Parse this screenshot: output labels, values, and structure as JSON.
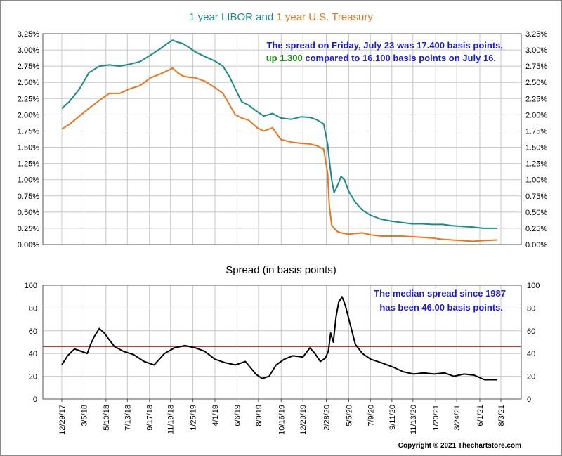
{
  "chart_data": [
    {
      "type": "line",
      "title_parts": [
        {
          "text": "1 year LIBOR",
          "color": "#1b8a8a"
        },
        {
          "text": " and ",
          "color": "#1b8a8a"
        },
        {
          "text": "1 year U.S. Treasury",
          "color": "#e87722"
        }
      ],
      "ylim": [
        0,
        3.25
      ],
      "y_ticks": [
        "0.00%",
        "0.25%",
        "0.50%",
        "0.75%",
        "1.00%",
        "1.25%",
        "1.50%",
        "1.75%",
        "2.00%",
        "2.25%",
        "2.50%",
        "2.75%",
        "3.00%",
        "3.25%"
      ],
      "annotation": {
        "line1": "The spread on Friday, July 23 was 17.400 basis points,",
        "line2_change": "up 1.300",
        "line2_rest": " compared to 16.100 basis points on July 16.",
        "color": "#1a1ad6",
        "change_color": "#1a8a1a"
      },
      "series": [
        {
          "name": "1 year LIBOR",
          "color": "#1b8a8a",
          "x": [
            "2017-12-29",
            "2018-01-20",
            "2018-02-20",
            "2018-03-20",
            "2018-04-20",
            "2018-05-20",
            "2018-06-20",
            "2018-07-20",
            "2018-08-20",
            "2018-09-20",
            "2018-10-20",
            "2018-11-10",
            "2018-11-25",
            "2018-12-10",
            "2018-12-25",
            "2019-01-10",
            "2019-02-01",
            "2019-03-01",
            "2019-04-01",
            "2019-04-25",
            "2019-05-15",
            "2019-06-01",
            "2019-06-20",
            "2019-07-10",
            "2019-08-05",
            "2019-08-25",
            "2019-09-20",
            "2019-10-15",
            "2019-11-15",
            "2019-12-15",
            "2020-01-10",
            "2020-02-01",
            "2020-02-20",
            "2020-03-03",
            "2020-03-08",
            "2020-03-15",
            "2020-03-22",
            "2020-04-01",
            "2020-04-12",
            "2020-04-22",
            "2020-05-05",
            "2020-05-25",
            "2020-06-15",
            "2020-07-10",
            "2020-08-10",
            "2020-09-10",
            "2020-10-10",
            "2020-11-10",
            "2020-12-10",
            "2021-01-10",
            "2021-02-10",
            "2021-03-10",
            "2021-04-10",
            "2021-05-10",
            "2021-06-10",
            "2021-07-23"
          ],
          "values": [
            2.1,
            2.2,
            2.4,
            2.65,
            2.75,
            2.77,
            2.75,
            2.78,
            2.82,
            2.92,
            3.02,
            3.1,
            3.15,
            3.12,
            3.1,
            3.05,
            2.97,
            2.9,
            2.83,
            2.75,
            2.58,
            2.4,
            2.2,
            2.15,
            2.05,
            1.98,
            2.02,
            1.95,
            1.93,
            1.97,
            1.96,
            1.92,
            1.86,
            1.55,
            1.3,
            1.0,
            0.8,
            0.9,
            1.05,
            1.0,
            0.82,
            0.65,
            0.53,
            0.45,
            0.39,
            0.36,
            0.34,
            0.32,
            0.32,
            0.31,
            0.31,
            0.29,
            0.28,
            0.27,
            0.25,
            0.25
          ]
        },
        {
          "name": "1 year U.S. Treasury",
          "color": "#e87722",
          "x": [
            "2017-12-29",
            "2018-01-20",
            "2018-02-20",
            "2018-03-20",
            "2018-04-20",
            "2018-05-20",
            "2018-06-20",
            "2018-07-20",
            "2018-08-20",
            "2018-09-20",
            "2018-10-20",
            "2018-11-10",
            "2018-11-25",
            "2018-12-10",
            "2018-12-25",
            "2019-01-10",
            "2019-02-01",
            "2019-03-01",
            "2019-04-01",
            "2019-04-25",
            "2019-05-15",
            "2019-06-01",
            "2019-06-20",
            "2019-07-10",
            "2019-08-05",
            "2019-08-25",
            "2019-09-20",
            "2019-10-15",
            "2019-11-15",
            "2019-12-15",
            "2020-01-10",
            "2020-02-01",
            "2020-02-20",
            "2020-03-03",
            "2020-03-08",
            "2020-03-15",
            "2020-03-22",
            "2020-04-01",
            "2020-04-12",
            "2020-04-22",
            "2020-05-05",
            "2020-05-25",
            "2020-06-15",
            "2020-07-10",
            "2020-08-10",
            "2020-09-10",
            "2020-10-10",
            "2020-11-10",
            "2020-12-10",
            "2021-01-10",
            "2021-02-10",
            "2021-03-10",
            "2021-04-10",
            "2021-05-10",
            "2021-06-10",
            "2021-07-23"
          ],
          "values": [
            1.78,
            1.85,
            1.98,
            2.1,
            2.22,
            2.33,
            2.33,
            2.4,
            2.45,
            2.57,
            2.63,
            2.68,
            2.72,
            2.65,
            2.6,
            2.58,
            2.57,
            2.52,
            2.42,
            2.33,
            2.15,
            2.0,
            1.95,
            1.92,
            1.8,
            1.75,
            1.8,
            1.62,
            1.58,
            1.56,
            1.55,
            1.52,
            1.47,
            1.1,
            0.6,
            0.3,
            0.25,
            0.2,
            0.18,
            0.17,
            0.16,
            0.17,
            0.18,
            0.15,
            0.13,
            0.13,
            0.13,
            0.12,
            0.11,
            0.1,
            0.08,
            0.07,
            0.06,
            0.05,
            0.06,
            0.07
          ]
        }
      ]
    },
    {
      "type": "line",
      "title": "Spread (in basis points)",
      "ylim": [
        0,
        100
      ],
      "y_ticks": [
        "0",
        "20",
        "40",
        "60",
        "80",
        "100"
      ],
      "median": 46.0,
      "median_color": "#e03030",
      "annotation": {
        "line1": "The median spread since 1987",
        "line2": "has been 46.00 basis points.",
        "color": "#1a1ad6"
      },
      "series": [
        {
          "name": "Spread",
          "color": "#000000",
          "x": [
            "2017-12-29",
            "2018-01-15",
            "2018-02-05",
            "2018-02-25",
            "2018-03-15",
            "2018-03-25",
            "2018-04-05",
            "2018-04-20",
            "2018-05-05",
            "2018-05-20",
            "2018-06-05",
            "2018-07-01",
            "2018-08-01",
            "2018-09-01",
            "2018-10-01",
            "2018-11-01",
            "2018-12-01",
            "2019-01-01",
            "2019-02-01",
            "2019-03-01",
            "2019-04-01",
            "2019-05-01",
            "2019-06-01",
            "2019-07-01",
            "2019-08-01",
            "2019-08-20",
            "2019-09-10",
            "2019-10-01",
            "2019-10-25",
            "2019-11-20",
            "2019-12-20",
            "2020-01-10",
            "2020-01-25",
            "2020-02-10",
            "2020-02-25",
            "2020-03-05",
            "2020-03-12",
            "2020-03-20",
            "2020-03-28",
            "2020-04-05",
            "2020-04-15",
            "2020-04-25",
            "2020-05-10",
            "2020-05-25",
            "2020-06-15",
            "2020-07-10",
            "2020-08-10",
            "2020-09-15",
            "2020-10-15",
            "2020-11-15",
            "2020-12-15",
            "2021-01-15",
            "2021-02-15",
            "2021-03-15",
            "2021-04-15",
            "2021-05-15",
            "2021-06-15",
            "2021-07-23"
          ],
          "values": [
            30,
            38,
            44,
            42,
            40,
            48,
            55,
            62,
            58,
            52,
            46,
            42,
            39,
            33,
            30,
            40,
            45,
            47,
            45,
            42,
            35,
            32,
            30,
            33,
            22,
            18,
            20,
            30,
            35,
            38,
            37,
            45,
            40,
            33,
            36,
            42,
            58,
            50,
            72,
            85,
            90,
            82,
            65,
            48,
            40,
            35,
            32,
            28,
            24,
            22,
            23,
            22,
            23,
            20,
            22,
            21,
            17,
            17
          ]
        }
      ]
    }
  ],
  "x_ticks": [
    "12/29/17",
    "3/5/18",
    "5/10/18",
    "7/13/18",
    "9/17/18",
    "11/19/18",
    "1/25/19",
    "4/1/19",
    "6/6/19",
    "8/9/19",
    "10/16/19",
    "12/20/19",
    "2/28/20",
    "5/5/20",
    "7/9/20",
    "9/11/20",
    "11/13/20",
    "1/20/21",
    "3/24/21",
    "6/1/21",
    "8/3/21"
  ],
  "x_tick_dates": [
    "2017-12-29",
    "2018-03-05",
    "2018-05-10",
    "2018-07-13",
    "2018-09-17",
    "2018-11-19",
    "2019-01-25",
    "2019-04-01",
    "2019-06-06",
    "2019-08-09",
    "2019-10-16",
    "2019-12-20",
    "2020-02-28",
    "2020-05-05",
    "2020-07-09",
    "2020-09-11",
    "2020-11-13",
    "2021-01-20",
    "2021-03-24",
    "2021-06-01",
    "2021-08-03"
  ],
  "copyright": "Copyright © 2021 Thechartstore.com"
}
